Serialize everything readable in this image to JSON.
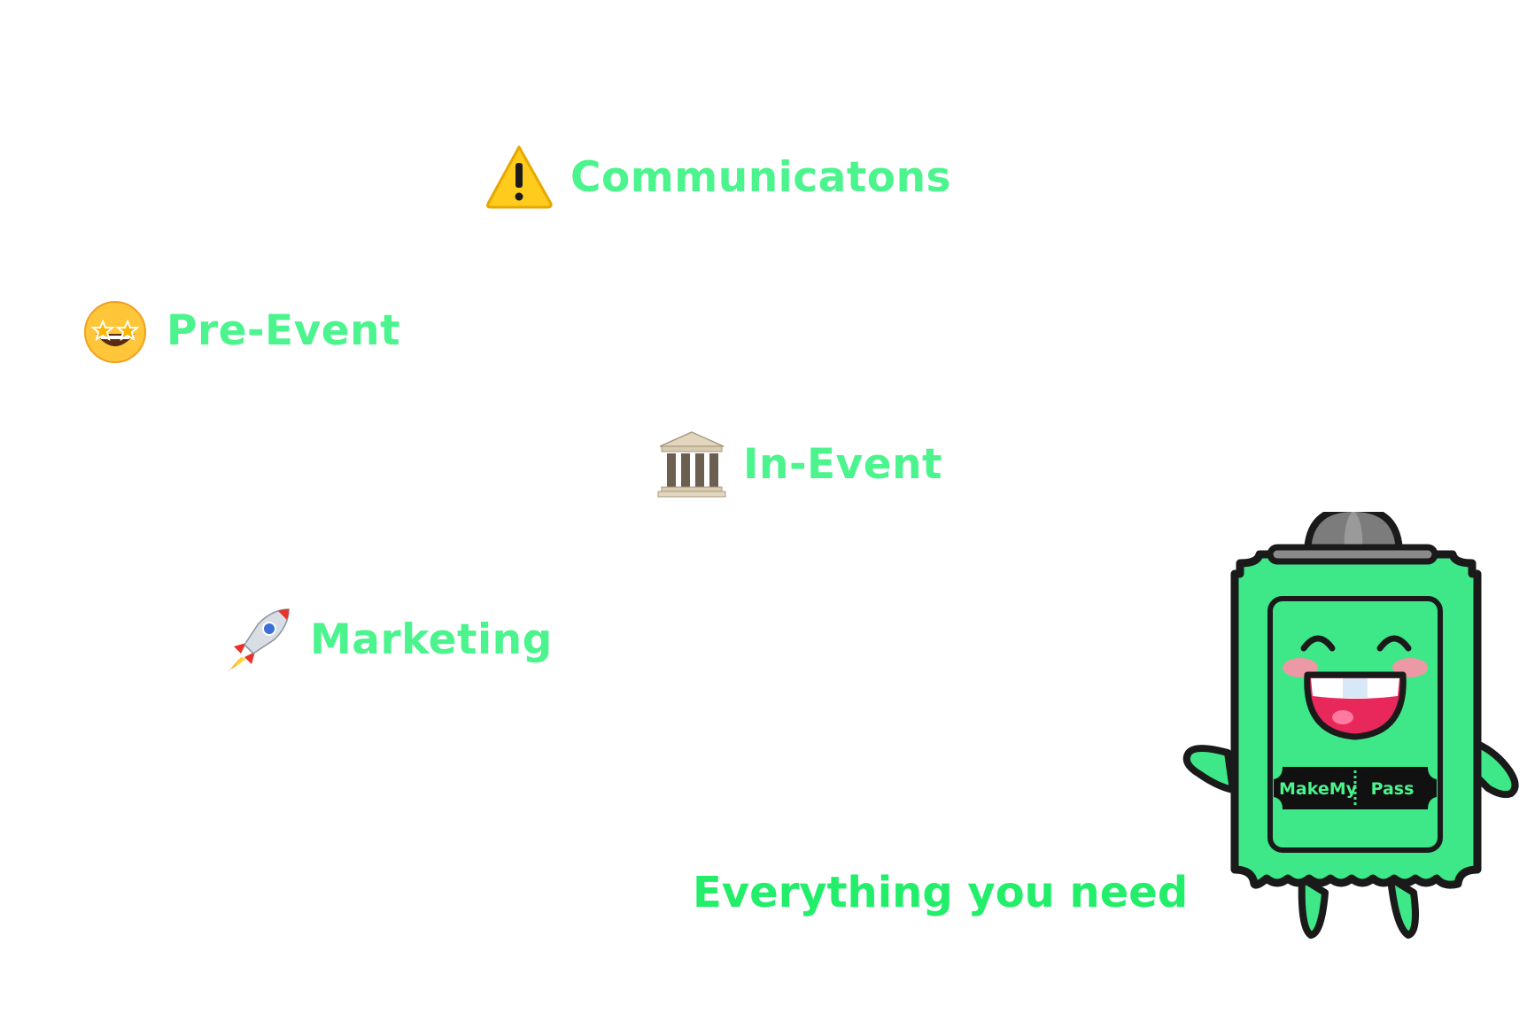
{
  "features": [
    {
      "id": "communications",
      "label": "Communicatons",
      "icon": "warning-icon"
    },
    {
      "id": "pre_event",
      "label": "Pre-Event",
      "icon": "star-struck-face-icon"
    },
    {
      "id": "in_event",
      "label": "In-Event",
      "icon": "classical-building-icon"
    },
    {
      "id": "marketing",
      "label": "Marketing",
      "icon": "rocket-icon"
    }
  ],
  "tagline": "Everything you need",
  "mascot": {
    "badge_left": "MakeMy",
    "badge_right": "Pass"
  },
  "colors": {
    "accent": "#4bf48d",
    "tagline": "#22ee6a",
    "mascot_body": "#3ee888",
    "outline": "#1a1a1a"
  }
}
